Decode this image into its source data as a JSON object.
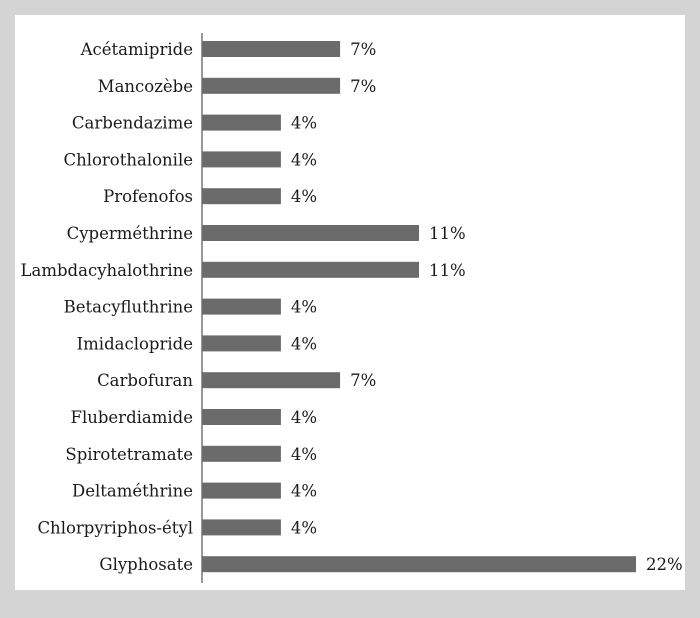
{
  "chart_data": {
    "type": "bar",
    "orientation": "horizontal",
    "title": "",
    "xlabel": "",
    "ylabel": "",
    "bar_color": "#6b6b6b",
    "value_format": "percent",
    "xlim": [
      0,
      22
    ],
    "grid": false,
    "legend": "none",
    "categories": [
      "Acétamipride",
      "Mancozèbe",
      "Carbendazime",
      "Chlorothalonile",
      "Profenofos",
      "Cyperméthrine",
      "Lambdacyhalothrine",
      "Betacyfluthrine",
      "Imidaclopride",
      "Carbofuran",
      "Fluberdiamide",
      "Spirotetramate",
      "Deltaméthrine",
      "Chlorpyriphos-étyl",
      "Glyphosate"
    ],
    "values": [
      7,
      7,
      4,
      4,
      4,
      11,
      11,
      4,
      4,
      7,
      4,
      4,
      4,
      4,
      22
    ],
    "value_labels": [
      "7%",
      "7%",
      "4%",
      "4%",
      "4%",
      "11%",
      "11%",
      "4%",
      "4%",
      "7%",
      "4%",
      "4%",
      "4%",
      "4%",
      "22%"
    ]
  }
}
